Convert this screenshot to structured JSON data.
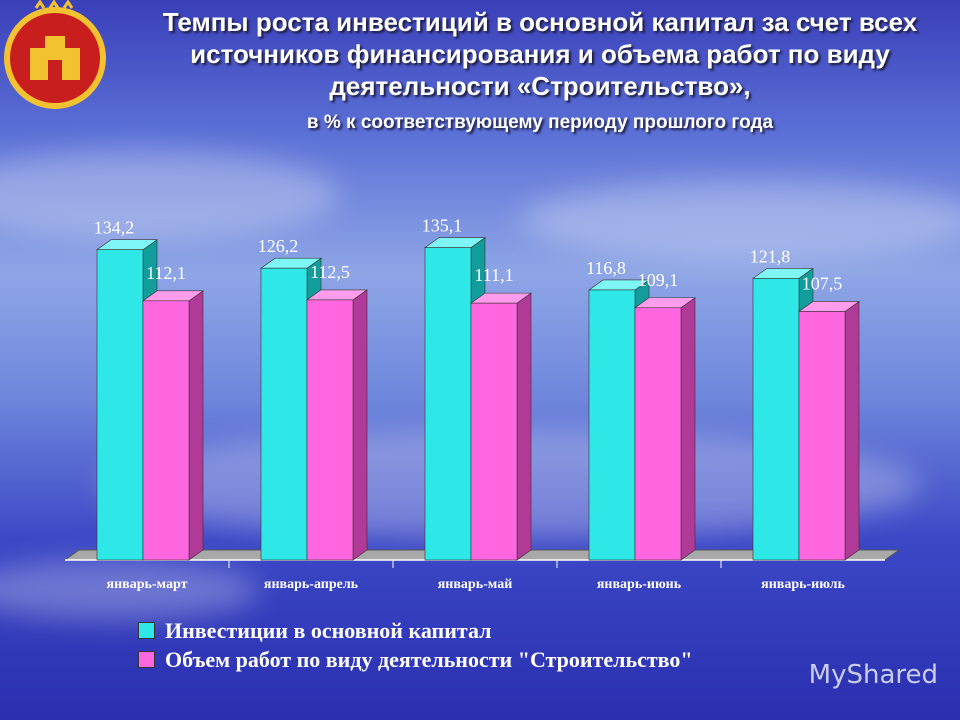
{
  "title": "Темпы роста инвестиций в основной капитал за счет всех источников финансирования и объема работ по виду деятельности «Строительство»,",
  "subtitle": "в % к соответствующему периоду прошлого года",
  "watermark": "MyShared",
  "colors": {
    "series1": "#2ee8e8",
    "series2": "#ff66e0",
    "label": "#ffffff"
  },
  "chart_data": {
    "type": "bar",
    "categories": [
      "январь-март",
      "январь-апрель",
      "январь-май",
      "январь-июнь",
      "январь-июль"
    ],
    "series": [
      {
        "name": "Инвестиции в основной капитал",
        "values": [
          134.2,
          126.2,
          135.1,
          116.8,
          121.8
        ],
        "labels": [
          "134,2",
          "126,2",
          "135,1",
          "116,8",
          "121,8"
        ]
      },
      {
        "name": "Объем работ по виду деятельности \"Строительство\"",
        "values": [
          112.1,
          112.5,
          111.1,
          109.1,
          107.5
        ],
        "labels": [
          "112,1",
          "112,5",
          "111,1",
          "109,1",
          "107,5"
        ]
      }
    ],
    "legend_position": "bottom",
    "grid": false
  }
}
